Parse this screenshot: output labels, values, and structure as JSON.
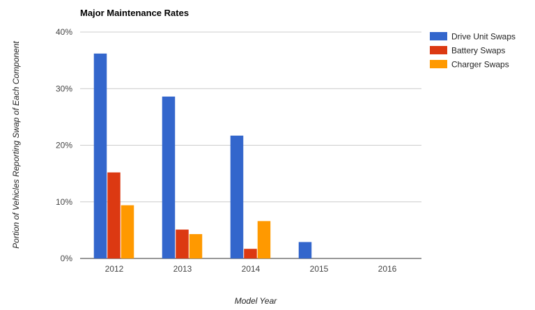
{
  "chart_data": {
    "type": "bar",
    "title": "Major Maintenance Rates",
    "xlabel": "Model Year",
    "ylabel": "Portion of Vehicles Reporting Swap of Each Component",
    "categories": [
      "2012",
      "2013",
      "2014",
      "2015",
      "2016"
    ],
    "y_ticks": [
      "0%",
      "10%",
      "20%",
      "30%",
      "40%"
    ],
    "ylim": [
      0,
      40
    ],
    "grid": true,
    "legend_position": "right",
    "series": [
      {
        "name": "Drive Unit Swaps",
        "color": "#3366cc",
        "values": [
          36.2,
          28.6,
          21.7,
          2.9,
          0
        ]
      },
      {
        "name": "Battery Swaps",
        "color": "#dc3912",
        "values": [
          15.2,
          5.1,
          1.7,
          0,
          0
        ]
      },
      {
        "name": "Charger Swaps",
        "color": "#ff9900",
        "values": [
          9.4,
          4.3,
          6.6,
          0,
          0
        ]
      }
    ]
  }
}
